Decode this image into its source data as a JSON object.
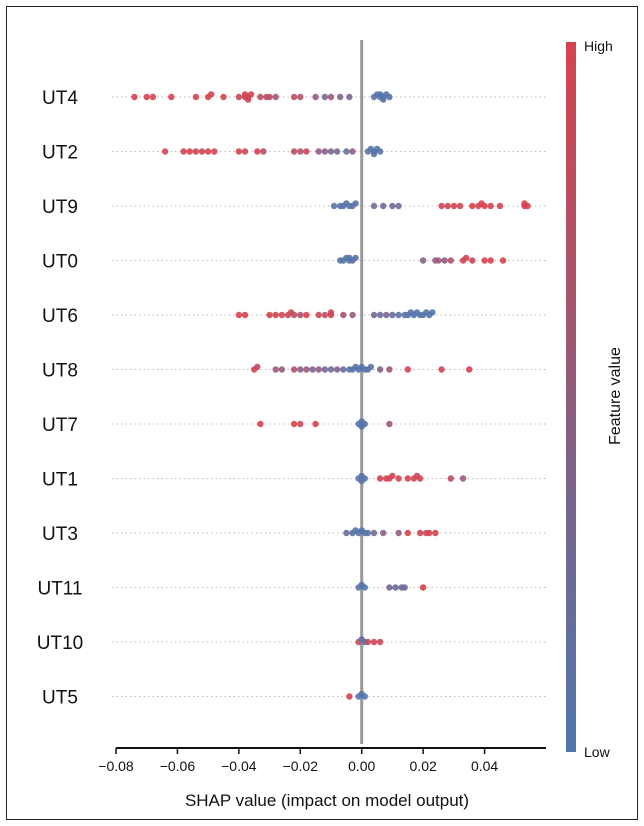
{
  "chart_data": {
    "type": "scatter",
    "subtype": "shap-beeswarm",
    "title": "",
    "xlabel": "SHAP value (impact on model output)",
    "ylabel": "",
    "xlim": [
      -0.08,
      0.06
    ],
    "xticks": [
      "−0.08",
      "−0.06",
      "−0.04",
      "−0.02",
      "0.00",
      "0.02",
      "0.04"
    ],
    "xtick_values": [
      -0.08,
      -0.06,
      -0.04,
      -0.02,
      0.0,
      0.02,
      0.04
    ],
    "colorbar": {
      "label": "Feature value",
      "high_label": "High",
      "low_label": "Low",
      "high_color": "#d6434f",
      "low_color": "#4f77ae"
    },
    "zero_line_color": "#999999",
    "features": [
      {
        "name": "UT4",
        "points": [
          [
            -0.074,
            1
          ],
          [
            -0.07,
            1
          ],
          [
            -0.068,
            1
          ],
          [
            -0.062,
            1
          ],
          [
            -0.054,
            1
          ],
          [
            -0.05,
            1
          ],
          [
            -0.049,
            1
          ],
          [
            -0.045,
            1
          ],
          [
            -0.04,
            0.9
          ],
          [
            -0.038,
            1
          ],
          [
            -0.037,
            1
          ],
          [
            -0.036,
            1
          ],
          [
            -0.037,
            0.95
          ],
          [
            -0.038,
            0.9
          ],
          [
            -0.033,
            0.8
          ],
          [
            -0.031,
            0.7
          ],
          [
            -0.03,
            0.85
          ],
          [
            -0.028,
            0.6
          ],
          [
            -0.022,
            0.8
          ],
          [
            -0.02,
            0.7
          ],
          [
            -0.015,
            0.5
          ],
          [
            -0.012,
            0.3
          ],
          [
            -0.01,
            0.6
          ],
          [
            -0.007,
            0.4
          ],
          [
            -0.004,
            0.3
          ],
          [
            0.004,
            0.1
          ],
          [
            0.005,
            0.05
          ],
          [
            0.006,
            0.1
          ],
          [
            0.007,
            0.05
          ],
          [
            0.008,
            0.1
          ],
          [
            0.009,
            0.05
          ],
          [
            0.006,
            0
          ],
          [
            0.007,
            0.1
          ]
        ]
      },
      {
        "name": "UT2",
        "points": [
          [
            -0.064,
            1
          ],
          [
            -0.058,
            1
          ],
          [
            -0.056,
            1
          ],
          [
            -0.054,
            1
          ],
          [
            -0.052,
            0.9
          ],
          [
            -0.05,
            1
          ],
          [
            -0.048,
            1
          ],
          [
            -0.04,
            1
          ],
          [
            -0.038,
            0.9
          ],
          [
            -0.034,
            1
          ],
          [
            -0.032,
            0.8
          ],
          [
            -0.022,
            0.8
          ],
          [
            -0.02,
            0.7
          ],
          [
            -0.018,
            0.9
          ],
          [
            -0.014,
            0.5
          ],
          [
            -0.012,
            0.4
          ],
          [
            -0.01,
            0.3
          ],
          [
            -0.008,
            0.3
          ],
          [
            -0.005,
            0.2
          ],
          [
            -0.003,
            0.5
          ],
          [
            0.002,
            0.1
          ],
          [
            0.003,
            0.05
          ],
          [
            0.004,
            0.1
          ],
          [
            0.005,
            0
          ],
          [
            0.006,
            0.05
          ],
          [
            0.004,
            0.1
          ]
        ]
      },
      {
        "name": "UT9",
        "points": [
          [
            -0.009,
            0.05
          ],
          [
            -0.007,
            0.1
          ],
          [
            -0.006,
            0.05
          ],
          [
            -0.005,
            0.1
          ],
          [
            -0.004,
            0
          ],
          [
            -0.003,
            0.1
          ],
          [
            -0.002,
            0.05
          ],
          [
            0.004,
            0.3
          ],
          [
            0.007,
            0.2
          ],
          [
            0.01,
            0.2
          ],
          [
            0.012,
            0.3
          ],
          [
            0.026,
            1
          ],
          [
            0.028,
            0.9
          ],
          [
            0.03,
            1
          ],
          [
            0.032,
            0.95
          ],
          [
            0.036,
            1
          ],
          [
            0.038,
            0.9
          ],
          [
            0.039,
            1
          ],
          [
            0.04,
            1
          ],
          [
            0.042,
            0.95
          ],
          [
            0.045,
            1
          ],
          [
            0.053,
            1
          ],
          [
            0.054,
            1
          ],
          [
            0.053,
            0.95
          ]
        ]
      },
      {
        "name": "UT0",
        "points": [
          [
            -0.007,
            0.1
          ],
          [
            -0.006,
            0.05
          ],
          [
            -0.005,
            0.1
          ],
          [
            -0.004,
            0
          ],
          [
            -0.003,
            0.1
          ],
          [
            -0.002,
            0.05
          ],
          [
            -0.004,
            0.05
          ],
          [
            0.02,
            0.4
          ],
          [
            0.024,
            0.5
          ],
          [
            0.025,
            0.6
          ],
          [
            0.027,
            0.5
          ],
          [
            0.029,
            0.7
          ],
          [
            0.033,
            1
          ],
          [
            0.034,
            0.95
          ],
          [
            0.036,
            0.9
          ],
          [
            0.04,
            1
          ],
          [
            0.042,
            1
          ],
          [
            0.046,
            1
          ]
        ]
      },
      {
        "name": "UT6",
        "points": [
          [
            -0.04,
            1
          ],
          [
            -0.038,
            1
          ],
          [
            -0.03,
            1
          ],
          [
            -0.028,
            1
          ],
          [
            -0.026,
            0.95
          ],
          [
            -0.024,
            0.8
          ],
          [
            -0.023,
            0.9
          ],
          [
            -0.022,
            0.85
          ],
          [
            -0.02,
            0.7
          ],
          [
            -0.018,
            1
          ],
          [
            -0.014,
            0.9
          ],
          [
            -0.012,
            0.8
          ],
          [
            -0.01,
            1
          ],
          [
            -0.01,
            0.95
          ],
          [
            -0.006,
            0.7
          ],
          [
            -0.003,
            0.5
          ],
          [
            0.004,
            0.3
          ],
          [
            0.006,
            0.2
          ],
          [
            0.008,
            0.3
          ],
          [
            0.01,
            0.2
          ],
          [
            0.012,
            0.1
          ],
          [
            0.014,
            0.1
          ],
          [
            0.015,
            0.05
          ],
          [
            0.016,
            0.1
          ],
          [
            0.017,
            0
          ],
          [
            0.018,
            0.05
          ],
          [
            0.019,
            0.1
          ],
          [
            0.02,
            0
          ],
          [
            0.021,
            0.05
          ],
          [
            0.022,
            0.1
          ],
          [
            0.023,
            0
          ]
        ]
      },
      {
        "name": "UT8",
        "points": [
          [
            -0.035,
            1
          ],
          [
            -0.034,
            0.8
          ],
          [
            -0.028,
            0.6
          ],
          [
            -0.026,
            0.5
          ],
          [
            -0.022,
            0.7
          ],
          [
            -0.02,
            0.4
          ],
          [
            -0.018,
            0.6
          ],
          [
            -0.016,
            0.3
          ],
          [
            -0.014,
            0.5
          ],
          [
            -0.012,
            0.3
          ],
          [
            -0.01,
            0.2
          ],
          [
            -0.008,
            0.4
          ],
          [
            -0.006,
            0.2
          ],
          [
            -0.004,
            0.1
          ],
          [
            -0.003,
            0.05
          ],
          [
            -0.002,
            0.1
          ],
          [
            -0.001,
            0
          ],
          [
            0,
            0.05
          ],
          [
            0.001,
            0.1
          ],
          [
            0.002,
            0.05
          ],
          [
            0.003,
            0.1
          ],
          [
            0.006,
            0.4
          ],
          [
            0.009,
            0.6
          ],
          [
            0.015,
            1
          ],
          [
            0.026,
            0.9
          ],
          [
            0.035,
            1
          ]
        ]
      },
      {
        "name": "UT7",
        "points": [
          [
            -0.033,
            1
          ],
          [
            -0.022,
            1
          ],
          [
            -0.02,
            0.9
          ],
          [
            -0.015,
            1
          ],
          [
            -0.001,
            0.1
          ],
          [
            0,
            0.05
          ],
          [
            0.001,
            0.1
          ],
          [
            0,
            0
          ],
          [
            0.009,
            0.6
          ]
        ]
      },
      {
        "name": "UT1",
        "points": [
          [
            -0.001,
            0.1
          ],
          [
            0,
            0.05
          ],
          [
            0.001,
            0
          ],
          [
            0,
            0.1
          ],
          [
            0.006,
            1
          ],
          [
            0.008,
            0.95
          ],
          [
            0.009,
            1
          ],
          [
            0.01,
            0.9
          ],
          [
            0.012,
            1
          ],
          [
            0.015,
            1
          ],
          [
            0.017,
            0.95
          ],
          [
            0.018,
            0.9
          ],
          [
            0.019,
            1
          ],
          [
            0.029,
            0.8
          ],
          [
            0.033,
            0.6
          ]
        ]
      },
      {
        "name": "UT3",
        "points": [
          [
            -0.005,
            0.2
          ],
          [
            -0.003,
            0.1
          ],
          [
            -0.002,
            0.05
          ],
          [
            -0.001,
            0.1
          ],
          [
            0,
            0
          ],
          [
            0.001,
            0.05
          ],
          [
            0.002,
            0.1
          ],
          [
            0.004,
            0.3
          ],
          [
            0.007,
            0.4
          ],
          [
            0.012,
            0.5
          ],
          [
            0.015,
            1
          ],
          [
            0.019,
            0.9
          ],
          [
            0.021,
            1
          ],
          [
            0.022,
            0.95
          ],
          [
            0.024,
            1
          ]
        ]
      },
      {
        "name": "UT11",
        "points": [
          [
            -0.001,
            0.1
          ],
          [
            0,
            0.05
          ],
          [
            0.001,
            0
          ],
          [
            0.009,
            0.3
          ],
          [
            0.011,
            0.2
          ],
          [
            0.013,
            0.3
          ],
          [
            0.014,
            0.2
          ],
          [
            0.02,
            1
          ]
        ]
      },
      {
        "name": "UT10",
        "points": [
          [
            -0.001,
            0.9
          ],
          [
            0,
            0.1
          ],
          [
            0.001,
            0.05
          ],
          [
            0.002,
            0.9
          ],
          [
            0.004,
            1
          ],
          [
            0.006,
            0.9
          ]
        ]
      },
      {
        "name": "UT5",
        "points": [
          [
            -0.004,
            1
          ],
          [
            -0.001,
            0.1
          ],
          [
            0,
            0.05
          ],
          [
            0.001,
            0
          ]
        ]
      }
    ]
  }
}
